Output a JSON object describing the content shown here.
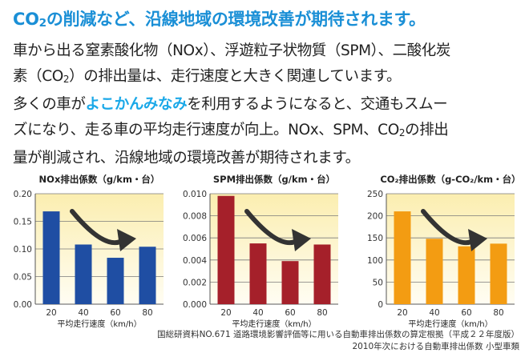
{
  "headline": {
    "part1": "CO",
    "sub": "2",
    "part2": "の削減など、沿線地域の環境改善が期待されます。"
  },
  "body": {
    "line1": "車から出る窒素酸化物（NOx）、浮遊粒子状物質（SPM）、二酸化炭",
    "line2_a": "素（CO",
    "line2_sub": "2",
    "line2_b": "）の排出量は、走行速度と大きく関連しています。",
    "line3_a": "多くの車が",
    "line3_highlight": "よこかんみなみ",
    "line3_b": "を利用するようになると、交通もスムー",
    "line4_a": "ズになり、走る車の平均走行速度が向上。NOx、SPM、CO",
    "line4_sub": "2",
    "line4_b": "の排出",
    "line5": "量が削減され、沿線地域の環境改善が期待されます。"
  },
  "chart_data": [
    {
      "type": "bar",
      "title": "NOx排出係数（g/km・台）",
      "xlabel": "平均走行速度（km/h）",
      "categories": [
        "20",
        "40",
        "60",
        "80"
      ],
      "values": [
        0.168,
        0.108,
        0.084,
        0.104
      ],
      "yticks": [
        "0.00",
        "0.05",
        "0.10",
        "0.15",
        "0.20"
      ],
      "ylim": [
        0,
        0.2
      ],
      "color": "#1f4ea3",
      "grid": true,
      "trend_arrow": true
    },
    {
      "type": "bar",
      "title": "SPM排出係数（g/km・台）",
      "xlabel": "平均走行速度（km/h）",
      "categories": [
        "20",
        "40",
        "60",
        "80"
      ],
      "values": [
        0.0098,
        0.0055,
        0.0039,
        0.0054
      ],
      "yticks": [
        "0.000",
        "0.002",
        "0.004",
        "0.006",
        "0.008",
        "0.010"
      ],
      "ylim": [
        0,
        0.01
      ],
      "color": "#a5202a",
      "grid": true,
      "trend_arrow": true
    },
    {
      "type": "bar",
      "title": "CO₂排出係数（g-CO₂/km・台）",
      "xlabel": "平均走行速度（km/h）",
      "categories": [
        "20",
        "40",
        "60",
        "80"
      ],
      "values": [
        210,
        148,
        131,
        137
      ],
      "yticks": [
        "0",
        "50",
        "100",
        "150",
        "200",
        "250"
      ],
      "ylim": [
        0,
        250
      ],
      "color": "#f39c12",
      "grid": true,
      "trend_arrow": true
    }
  ],
  "source": {
    "line1": "国総研資料NO.671 道路環境影響評価等に用いる自動車排出係数の算定根拠（平成２２年度版）",
    "line2": "2010年次における自動車排出係数 小型車類"
  }
}
